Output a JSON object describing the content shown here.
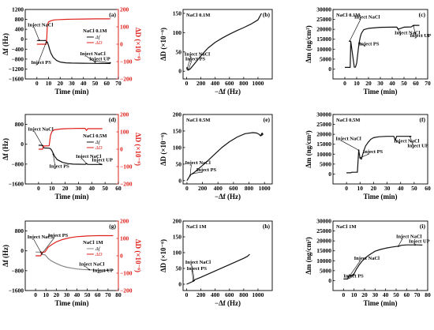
{
  "chart_data": [
    {
      "id": "a",
      "panel_label": "(a)",
      "type": "line",
      "dual_axis": true,
      "concentration": "NaCl 0.1M",
      "xlabel": "Time (min)",
      "ylabel": "Δf (Hz)",
      "y2label": "ΔD (×10⁻⁶)",
      "xlim": [
        -10,
        70
      ],
      "ylim": [
        -1600,
        1200
      ],
      "y2lim": [
        -200,
        200
      ],
      "xticks": [
        0,
        10,
        20,
        30,
        40,
        50,
        60,
        70
      ],
      "yticks": [
        -1600,
        -1200,
        -800,
        -400,
        0,
        400,
        800,
        1200
      ],
      "y2ticks": [
        -200,
        -100,
        0,
        100,
        200
      ],
      "legend": [
        "Δf",
        "ΔD"
      ],
      "series": [
        {
          "name": "Δf",
          "axis": "left",
          "color": "#111111",
          "x": [
            0,
            5,
            8,
            9,
            10,
            11,
            12,
            14,
            17,
            20,
            25,
            30,
            35,
            40,
            45,
            50,
            55,
            60,
            63
          ],
          "y": [
            -50,
            -50,
            -55,
            -120,
            -250,
            -420,
            -560,
            -730,
            -860,
            -920,
            -950,
            -960,
            -965,
            -968,
            -970,
            -972,
            -975,
            -975,
            -975
          ]
        },
        {
          "name": "ΔD",
          "axis": "right",
          "color": "#e0201b",
          "x": [
            0,
            5,
            8,
            8.5,
            9,
            10,
            12,
            15,
            20,
            25,
            30,
            40,
            50,
            55,
            60,
            63
          ],
          "y": [
            0,
            0,
            0,
            40,
            110,
            128,
            135,
            140,
            142,
            143,
            144,
            145,
            146,
            146,
            146,
            146
          ]
        }
      ],
      "annotations": [
        "Inject NaCl",
        "Inject PS",
        "Inject NaCl",
        "Inject UP"
      ]
    },
    {
      "id": "b",
      "panel_label": "(b)",
      "type": "line",
      "concentration": "NaCl 0.1M",
      "xlabel": "−Δf (Hz)",
      "ylabel": "ΔD (×10⁻⁶)",
      "xlim": [
        -50,
        1200
      ],
      "ylim": [
        -20,
        160
      ],
      "xticks": [
        0,
        200,
        400,
        600,
        800,
        1000
      ],
      "yticks": [
        0,
        50,
        100,
        150
      ],
      "series": [
        {
          "name": "",
          "color": "#111111",
          "x": [
            0,
            10,
            25,
            50,
            100,
            200,
            300,
            400,
            500,
            600,
            700,
            800,
            900,
            1000,
            1050
          ],
          "y": [
            10,
            4,
            3,
            6,
            17,
            40,
            60,
            75,
            86,
            96,
            105,
            113,
            122,
            133,
            150
          ]
        }
      ],
      "annotations": [
        "Inject NaCl",
        "Inject PS"
      ]
    },
    {
      "id": "c",
      "panel_label": "(c)",
      "type": "line",
      "concentration": "NaCl 0.1M",
      "xlabel": "Time (min)",
      "ylabel": "Δm (ng/cm²)",
      "xlim": [
        -10,
        70
      ],
      "ylim": [
        -5000,
        30000
      ],
      "xticks": [
        0,
        10,
        20,
        30,
        40,
        50,
        60,
        70
      ],
      "yticks": [
        0,
        5000,
        10000,
        15000,
        20000,
        25000,
        30000
      ],
      "series": [
        {
          "name": "",
          "color": "#111111",
          "x": [
            0,
            3,
            4.5,
            5,
            8,
            9,
            10,
            11,
            12,
            13,
            14,
            16,
            20,
            30,
            40,
            44,
            45,
            50,
            56,
            58,
            63
          ],
          "y": [
            800,
            800,
            800,
            14000,
            900,
            950,
            3000,
            8000,
            13000,
            16000,
            18000,
            19800,
            20500,
            21000,
            21100,
            21100,
            20000,
            21100,
            21200,
            22000,
            22000
          ]
        }
      ],
      "annotations": [
        "Inject NaCl",
        "Inject PS",
        "Inject NaCl",
        "Inject UP"
      ]
    },
    {
      "id": "d",
      "panel_label": "(d)",
      "type": "line",
      "dual_axis": true,
      "concentration": "NaCl 0.5M",
      "xlabel": "Time (min)",
      "ylabel": "Δf (Hz)",
      "y2label": "ΔD (×10⁻⁶)",
      "xlim": [
        -10,
        60
      ],
      "ylim": [
        -1600,
        1200
      ],
      "y2lim": [
        -200,
        200
      ],
      "xticks": [
        0,
        10,
        20,
        30,
        40,
        50,
        60
      ],
      "yticks": [
        -1600,
        -800,
        0,
        800
      ],
      "y2ticks": [
        -200,
        -100,
        0,
        100,
        200
      ],
      "legend": [
        "Δf",
        "ΔD"
      ],
      "series": [
        {
          "name": "Δf",
          "axis": "left",
          "color": "#111111",
          "x": [
            0,
            3,
            4,
            8,
            9,
            10,
            11,
            12,
            14,
            18,
            22,
            26,
            30,
            35,
            36,
            37,
            40,
            45,
            48
          ],
          "y": [
            -40,
            -40,
            -150,
            -160,
            -180,
            -250,
            -370,
            -480,
            -620,
            -730,
            -780,
            -800,
            -805,
            -810,
            -780,
            -810,
            -815,
            -815,
            -815
          ]
        },
        {
          "name": "ΔD",
          "axis": "right",
          "color": "#e0201b",
          "x": [
            0,
            3,
            3.5,
            8,
            9,
            10,
            11,
            12,
            16,
            20,
            25,
            30,
            35,
            36,
            37,
            40,
            45,
            48
          ],
          "y": [
            0,
            0,
            18,
            20,
            80,
            100,
            108,
            112,
            116,
            118,
            119,
            120,
            120,
            108,
            118,
            118,
            118,
            118
          ]
        }
      ],
      "annotations": [
        "Inject NaCl",
        "Inject PS",
        "Inject NaCl",
        "Inject UP"
      ]
    },
    {
      "id": "e",
      "panel_label": "(e)",
      "type": "line",
      "concentration": "NaCl 0.5M",
      "xlabel": "−Δf (Hz)",
      "ylabel": "ΔD (×10⁻⁶)",
      "xlim": [
        -50,
        1100
      ],
      "ylim": [
        -10,
        200
      ],
      "xticks": [
        0,
        200,
        400,
        600,
        800,
        1000
      ],
      "yticks": [
        0,
        50,
        100,
        150,
        200
      ],
      "series": [
        {
          "name": "",
          "color": "#111111",
          "x": [
            0,
            40,
            45,
            80,
            150,
            250,
            350,
            450,
            550,
            650,
            750,
            850,
            900,
            930,
            950,
            960,
            970,
            980,
            960
          ],
          "y": [
            0,
            15,
            18,
            22,
            36,
            56,
            78,
            100,
            118,
            132,
            142,
            145,
            144,
            140,
            135,
            140,
            144,
            140,
            136
          ]
        }
      ],
      "annotations": [
        "Inject NaCl",
        "Inject PS"
      ]
    },
    {
      "id": "f",
      "panel_label": "(f)",
      "type": "line",
      "concentration": "NaCl 0.5M",
      "xlabel": "Time (min)",
      "ylabel": "Δm (ng/cm²)",
      "xlim": [
        -10,
        60
      ],
      "ylim": [
        -5000,
        30000
      ],
      "xticks": [
        0,
        10,
        20,
        30,
        40,
        50,
        60
      ],
      "yticks": [
        0,
        5000,
        10000,
        15000,
        20000,
        25000,
        30000
      ],
      "series": [
        {
          "name": "",
          "color": "#111111",
          "x": [
            0,
            3,
            4,
            8,
            9,
            10,
            11,
            12,
            14,
            16,
            18,
            20,
            24,
            30,
            35,
            36,
            37,
            40,
            45,
            48
          ],
          "y": [
            600,
            600,
            900,
            900,
            12000,
            8000,
            7500,
            10000,
            14000,
            16000,
            17500,
            18300,
            18800,
            19000,
            19000,
            17000,
            19000,
            19000,
            19000,
            19000
          ]
        }
      ],
      "annotations": [
        "Inject NaCl",
        "Inject PS",
        "Inject NaCl",
        "Inject UP"
      ]
    },
    {
      "id": "g",
      "panel_label": "(g)",
      "type": "line",
      "dual_axis": true,
      "concentration": "NaCl 1M",
      "xlabel": "Time (min)",
      "ylabel": "Δf (Hz)",
      "y2label": "ΔD (×10⁻⁶)",
      "xlim": [
        -10,
        80
      ],
      "ylim": [
        -1600,
        1200
      ],
      "y2lim": [
        -200,
        200
      ],
      "xticks": [
        0,
        10,
        20,
        30,
        40,
        50,
        60,
        70,
        80
      ],
      "yticks": [
        -1600,
        -800,
        0,
        800
      ],
      "y2ticks": [
        -200,
        -100,
        0,
        100,
        200
      ],
      "legend": [
        "Δf",
        "ΔD"
      ],
      "series": [
        {
          "name": "Δf",
          "axis": "left",
          "color": "#888888",
          "x": [
            0,
            5,
            6,
            9,
            10,
            12,
            15,
            20,
            25,
            30,
            35,
            40,
            45,
            50,
            55,
            60,
            65,
            70,
            75
          ],
          "y": [
            -50,
            -50,
            -150,
            -160,
            -200,
            -300,
            -400,
            -510,
            -600,
            -660,
            -700,
            -730,
            -750,
            -760,
            -770,
            -775,
            -780,
            -780,
            -780
          ]
        },
        {
          "name": "ΔD",
          "axis": "right",
          "color": "#e0201b",
          "x": [
            0,
            5,
            6,
            9,
            10,
            12,
            15,
            20,
            25,
            30,
            35,
            40,
            45,
            50,
            55,
            60,
            65,
            70,
            75
          ],
          "y": [
            0,
            0,
            20,
            22,
            30,
            48,
            62,
            80,
            92,
            100,
            106,
            110,
            112,
            114,
            115,
            116,
            116,
            116,
            116
          ]
        }
      ],
      "annotations": [
        "Inject NaCl",
        "Inject PS",
        "Inject NaCl",
        "Inject UP"
      ]
    },
    {
      "id": "h",
      "panel_label": "(h)",
      "type": "line",
      "concentration": "NaCl 1M",
      "xlabel": "−Δf (Hz)",
      "ylabel": "ΔD (×10⁻⁶)",
      "xlim": [
        -50,
        1200
      ],
      "ylim": [
        -20,
        200
      ],
      "xticks": [
        0,
        200,
        400,
        600,
        800,
        1000
      ],
      "yticks": [
        0,
        50,
        100,
        150,
        200
      ],
      "series": [
        {
          "name": "",
          "color": "#111111",
          "x": [
            0,
            100,
            110,
            200,
            300,
            400,
            500,
            600,
            700,
            800,
            850,
            870,
            880,
            870
          ],
          "y": [
            0,
            10,
            14,
            22,
            32,
            42,
            52,
            62,
            72,
            82,
            88,
            92,
            94,
            92
          ]
        }
      ],
      "annotations": [
        "Inject NaCl",
        "Inject PS"
      ]
    },
    {
      "id": "i",
      "panel_label": "(i)",
      "type": "line",
      "concentration": "NaCl 1M",
      "xlabel": "Time (min)",
      "ylabel": "Δm (ng/cm²)",
      "xlim": [
        -10,
        80
      ],
      "ylim": [
        -5000,
        30000
      ],
      "xticks": [
        0,
        10,
        20,
        30,
        40,
        50,
        60,
        70,
        80
      ],
      "yticks": [
        0,
        5000,
        10000,
        15000,
        20000,
        25000,
        30000
      ],
      "series": [
        {
          "name": "",
          "color": "#111111",
          "x": [
            0,
            4,
            5,
            7,
            9,
            10,
            12,
            15,
            18,
            22,
            26,
            30,
            35,
            40,
            45,
            50,
            53,
            55,
            60,
            65,
            70,
            75
          ],
          "y": [
            800,
            800,
            2500,
            2500,
            3000,
            3500,
            5500,
            8000,
            10000,
            12000,
            13500,
            14800,
            15700,
            16300,
            16800,
            17200,
            17400,
            17800,
            18000,
            18000,
            18000,
            17900
          ]
        }
      ],
      "annotations": [
        "Inject NaCl",
        "Inject PS",
        "Inject NaCl",
        "Inject UP"
      ]
    }
  ]
}
